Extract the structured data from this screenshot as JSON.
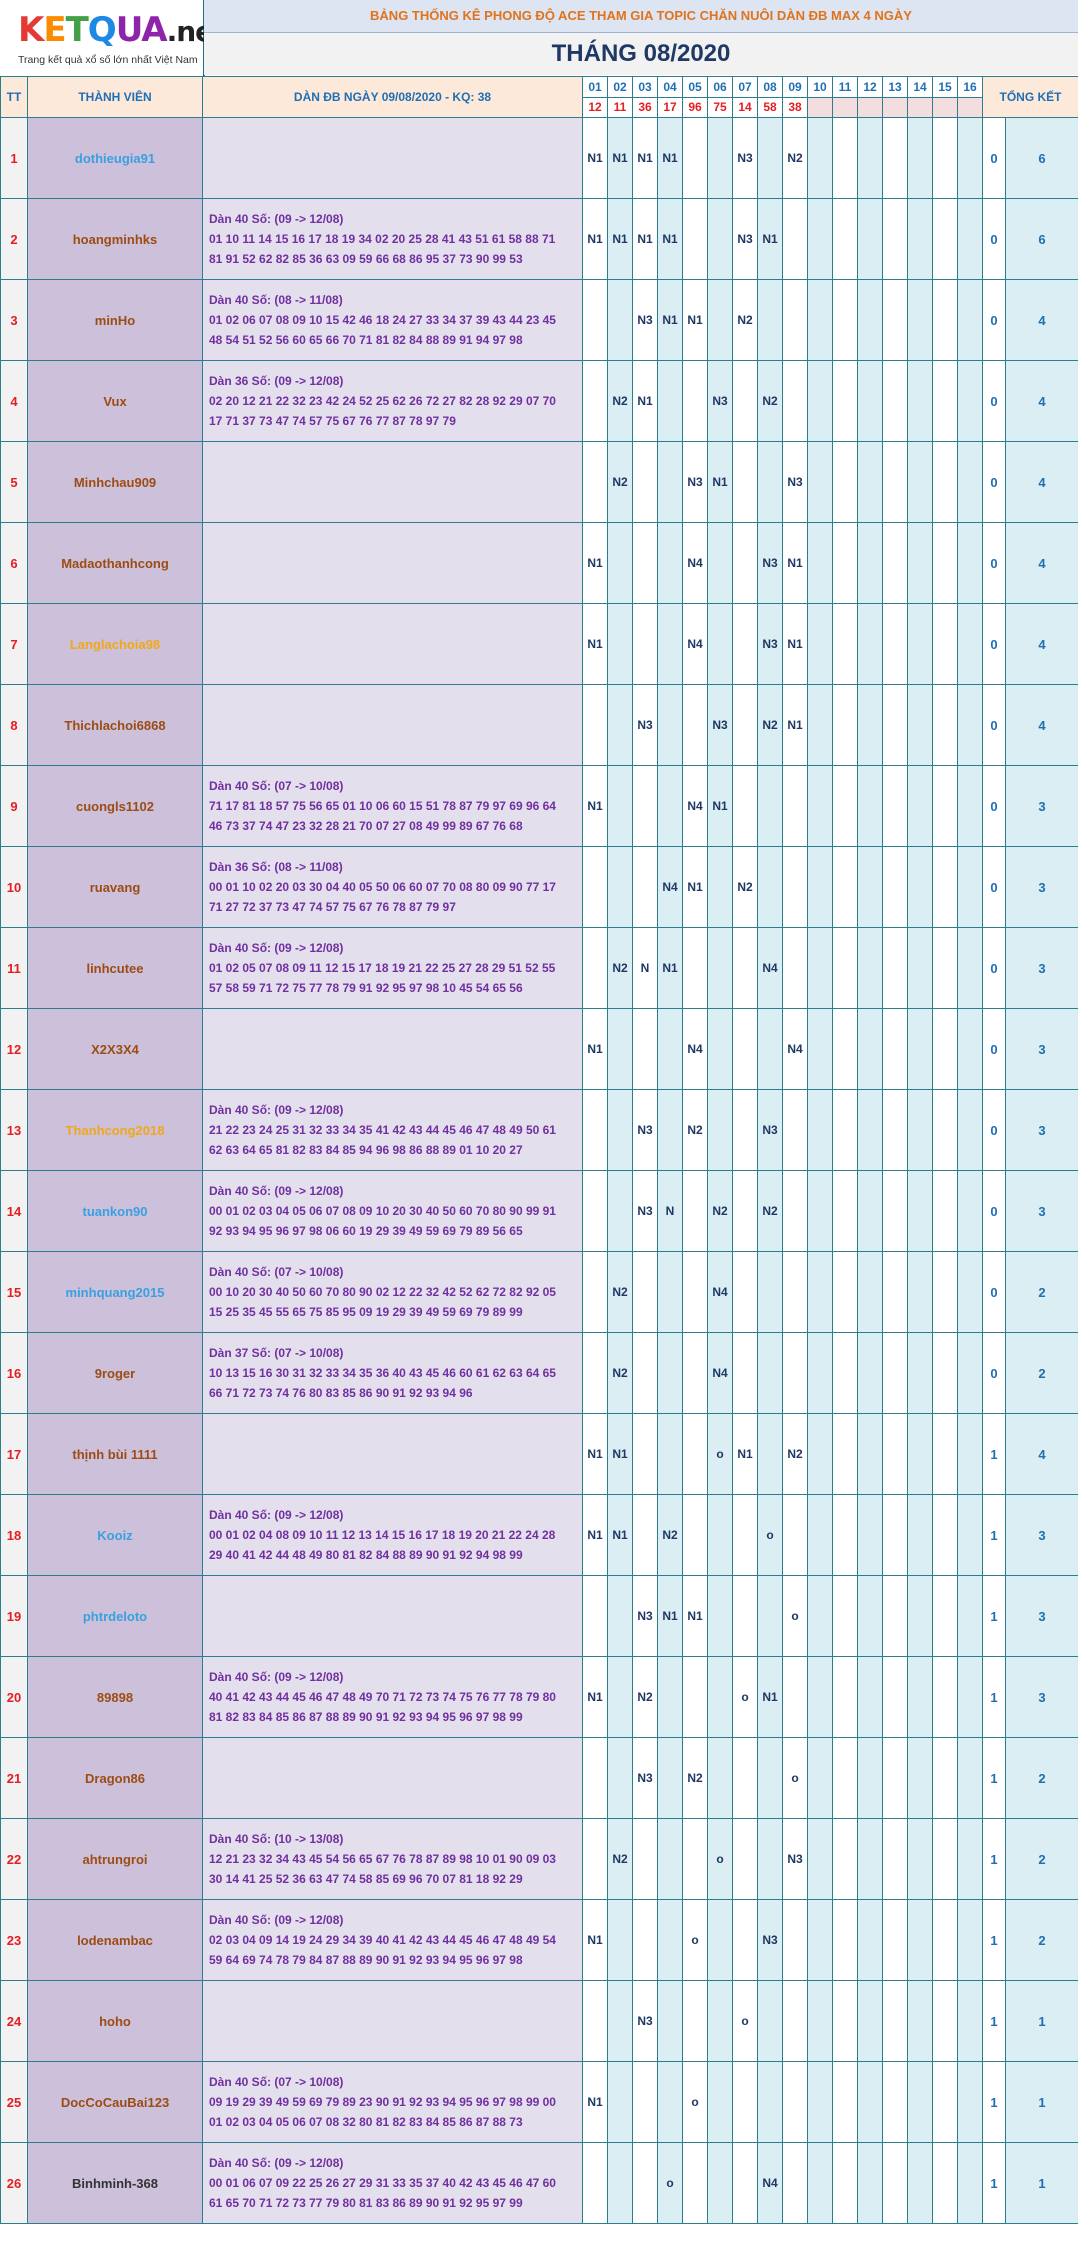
{
  "logo": {
    "c1": "K",
    "c2": "E",
    "c3": "T",
    "c4": "Q",
    "c5": "UA",
    "c6": ".net",
    "tagline": "Trang kết quả xổ số lớn nhất Việt Nam"
  },
  "banner": "BẢNG THỐNG KÊ PHONG ĐỘ ACE THAM GIA TOPIC CHĂN NUÔI DÀN ĐB MAX 4 NGÀY",
  "month_title": "THÁNG 08/2020",
  "headers": {
    "tt": "TT",
    "member": "THÀNH VIÊN",
    "dan": "DÀN ĐB NGÀY 09/08/2020 - KQ: 38",
    "summary": "TỔNG KẾT"
  },
  "days": [
    "01",
    "02",
    "03",
    "04",
    "05",
    "06",
    "07",
    "08",
    "09",
    "10",
    "11",
    "12",
    "13",
    "14",
    "15",
    "16"
  ],
  "results": [
    "12",
    "11",
    "36",
    "17",
    "96",
    "75",
    "14",
    "58",
    "38",
    "",
    "",
    "",
    "",
    "",
    "",
    ""
  ],
  "colors": {
    "blue_name": "#3aa0e0",
    "brown_name": "#9c4c14",
    "gold_name": "#f0a818",
    "index_red": "#e31e24",
    "dan_purple": "#7030a0",
    "header_bg": "#fde9d9",
    "member_bg": "#ccc0da",
    "dan_bg": "#e4dfec",
    "stripe": "#daeef3"
  },
  "rows": [
    {
      "tt": "1",
      "name": "dothieugia91",
      "color": "blue",
      "dan": [],
      "marks": [
        "N1",
        "N1",
        "N1",
        "N1",
        "",
        "",
        "N3",
        "",
        "N2",
        "",
        "",
        "",
        "",
        "",
        "",
        ""
      ],
      "wins": "0",
      "total": "6"
    },
    {
      "tt": "2",
      "name": "hoangminhks",
      "color": "brown",
      "dan": [
        "Dàn 40 Số: (09 -> 12/08)",
        "01 10 11 14 15 16 17 18 19 34 02 20 25 28 41 43 51 61 58 88 71",
        "81 91 52 62 82 85 36 63 09 59 66 68 86 95 37 73 90 99 53"
      ],
      "marks": [
        "N1",
        "N1",
        "N1",
        "N1",
        "",
        "",
        "N3",
        "N1",
        "",
        "",
        "",
        "",
        "",
        "",
        "",
        ""
      ],
      "wins": "0",
      "total": "6"
    },
    {
      "tt": "3",
      "name": "minHo",
      "color": "brown",
      "dan": [
        "Dàn 40 Số: (08 -> 11/08)",
        "01 02 06 07 08 09 10 15 42 46 18 24 27 33 34 37 39 43 44 23 45",
        "48 54 51 52 56 60 65 66 70 71 81 82 84 88 89 91 94 97 98"
      ],
      "marks": [
        "",
        "",
        "N3",
        "N1",
        "N1",
        "",
        "N2",
        "",
        "",
        "",
        "",
        "",
        "",
        "",
        "",
        ""
      ],
      "wins": "0",
      "total": "4"
    },
    {
      "tt": "4",
      "name": "Vux",
      "color": "brown",
      "dan": [
        "Dàn 36 Số: (09 -> 12/08)",
        "02 20 12 21 22 32 23 42 24 52 25 62 26 72 27 82 28 92 29 07 70",
        "17 71 37 73 47 74 57 75 67 76 77 87 78 97 79"
      ],
      "marks": [
        "",
        "N2",
        "N1",
        "",
        "",
        "N3",
        "",
        "N2",
        "",
        "",
        "",
        "",
        "",
        "",
        "",
        ""
      ],
      "wins": "0",
      "total": "4"
    },
    {
      "tt": "5",
      "name": "Minhchau909",
      "color": "brown",
      "dan": [],
      "marks": [
        "",
        "N2",
        "",
        "",
        "N3",
        "N1",
        "",
        "",
        "N3",
        "",
        "",
        "",
        "",
        "",
        "",
        ""
      ],
      "wins": "0",
      "total": "4"
    },
    {
      "tt": "6",
      "name": "Madaothanhcong",
      "color": "brown",
      "dan": [],
      "marks": [
        "N1",
        "",
        "",
        "",
        "N4",
        "",
        "",
        "N3",
        "N1",
        "",
        "",
        "",
        "",
        "",
        "",
        ""
      ],
      "wins": "0",
      "total": "4"
    },
    {
      "tt": "7",
      "name": "Langlachoia98",
      "color": "gold",
      "dan": [],
      "marks": [
        "N1",
        "",
        "",
        "",
        "N4",
        "",
        "",
        "N3",
        "N1",
        "",
        "",
        "",
        "",
        "",
        "",
        ""
      ],
      "wins": "0",
      "total": "4"
    },
    {
      "tt": "8",
      "name": "Thichlachoi6868",
      "color": "brown",
      "dan": [],
      "marks": [
        "",
        "",
        "N3",
        "",
        "",
        "N3",
        "",
        "N2",
        "N1",
        "",
        "",
        "",
        "",
        "",
        "",
        ""
      ],
      "wins": "0",
      "total": "4"
    },
    {
      "tt": "9",
      "name": "cuongls1102",
      "color": "brown",
      "dan": [
        "Dàn 40 Số: (07 -> 10/08)",
        "71 17 81 18 57 75 56 65 01 10 06 60 15 51 78 87 79 97 69 96 64",
        "46 73 37 74 47 23 32 28 21 70 07 27 08 49 99 89 67 76 68"
      ],
      "marks": [
        "N1",
        "",
        "",
        "",
        "N4",
        "N1",
        "",
        "",
        "",
        "",
        "",
        "",
        "",
        "",
        "",
        ""
      ],
      "wins": "0",
      "total": "3"
    },
    {
      "tt": "10",
      "name": "ruavang",
      "color": "brown",
      "dan": [
        "Dàn 36 Số: (08 -> 11/08)",
        "00 01 10 02 20 03 30 04 40 05 50 06 60 07 70 08 80 09 90 77 17",
        "71 27 72 37 73 47 74 57 75 67 76 78 87 79 97"
      ],
      "marks": [
        "",
        "",
        "",
        "N4",
        "N1",
        "",
        "N2",
        "",
        "",
        "",
        "",
        "",
        "",
        "",
        "",
        ""
      ],
      "wins": "0",
      "total": "3"
    },
    {
      "tt": "11",
      "name": "linhcutee",
      "color": "brown",
      "dan": [
        "Dàn 40 Số: (09 -> 12/08)",
        "01 02 05 07 08 09 11 12 15 17 18 19 21 22 25 27 28 29 51 52 55",
        "57 58 59 71 72 75 77 78 79 91 92 95 97 98 10 45 54 65 56"
      ],
      "marks": [
        "",
        "N2",
        "N",
        "N1",
        "",
        "",
        "",
        "N4",
        "",
        "",
        "",
        "",
        "",
        "",
        "",
        ""
      ],
      "wins": "0",
      "total": "3"
    },
    {
      "tt": "12",
      "name": "X2X3X4",
      "color": "brown",
      "dan": [],
      "marks": [
        "N1",
        "",
        "",
        "",
        "N4",
        "",
        "",
        "",
        "N4",
        "",
        "",
        "",
        "",
        "",
        "",
        ""
      ],
      "wins": "0",
      "total": "3"
    },
    {
      "tt": "13",
      "name": "Thanhcong2018",
      "color": "gold",
      "dan": [
        "Dàn 40 Số: (09 -> 12/08)",
        "21 22 23 24 25 31 32 33 34 35 41 42 43 44 45 46 47 48 49 50 61",
        "62 63 64 65 81 82 83 84 85 94 96 98 86 88 89 01 10 20 27"
      ],
      "marks": [
        "",
        "",
        "N3",
        "",
        "N2",
        "",
        "",
        "N3",
        "",
        "",
        "",
        "",
        "",
        "",
        "",
        ""
      ],
      "wins": "0",
      "total": "3"
    },
    {
      "tt": "14",
      "name": "tuankon90",
      "color": "blue",
      "dan": [
        "Dàn 40 Số: (09 -> 12/08)",
        "00 01 02 03 04 05 06 07 08 09 10 20 30 40 50 60 70 80 90 99 91",
        "92 93 94 95 96 97 98 06 60 19 29 39 49 59 69 79 89 56 65"
      ],
      "marks": [
        "",
        "",
        "N3",
        "N",
        "",
        "N2",
        "",
        "N2",
        "",
        "",
        "",
        "",
        "",
        "",
        "",
        ""
      ],
      "wins": "0",
      "total": "3"
    },
    {
      "tt": "15",
      "name": "minhquang2015",
      "color": "blue",
      "dan": [
        "Dàn 40 Số: (07 -> 10/08)",
        "00 10 20 30 40 50 60 70 80 90 02 12 22 32 42 52 62 72 82 92 05",
        "15 25 35 45 55 65 75 85 95 09 19 29 39 49 59 69 79 89 99"
      ],
      "marks": [
        "",
        "N2",
        "",
        "",
        "",
        "N4",
        "",
        "",
        "",
        "",
        "",
        "",
        "",
        "",
        "",
        ""
      ],
      "wins": "0",
      "total": "2"
    },
    {
      "tt": "16",
      "name": "9roger",
      "color": "brown",
      "dan": [
        "Dàn 37 Số: (07 -> 10/08)",
        "10 13 15 16 30 31 32 33 34 35 36 40 43 45 46 60 61 62 63 64 65",
        "66 71 72 73 74 76 80 83 85 86 90 91 92 93 94 96"
      ],
      "marks": [
        "",
        "N2",
        "",
        "",
        "",
        "N4",
        "",
        "",
        "",
        "",
        "",
        "",
        "",
        "",
        "",
        ""
      ],
      "wins": "0",
      "total": "2"
    },
    {
      "tt": "17",
      "name": "thịnh bùi 1111",
      "color": "brown",
      "dan": [],
      "marks": [
        "N1",
        "N1",
        "",
        "",
        "",
        "o",
        "N1",
        "",
        "N2",
        "",
        "",
        "",
        "",
        "",
        "",
        ""
      ],
      "wins": "1",
      "total": "4"
    },
    {
      "tt": "18",
      "name": "Kooiz",
      "color": "blue",
      "dan": [
        "Dàn 40 Số: (09 -> 12/08)",
        "00 01 02 04 08 09 10 11 12 13 14 15 16 17 18 19 20 21 22 24 28",
        "29 40 41 42 44 48 49 80 81 82 84 88 89 90 91 92 94 98 99"
      ],
      "marks": [
        "N1",
        "N1",
        "",
        "N2",
        "",
        "",
        "",
        "o",
        "",
        "",
        "",
        "",
        "",
        "",
        "",
        ""
      ],
      "wins": "1",
      "total": "3"
    },
    {
      "tt": "19",
      "name": "phtrdeloto",
      "color": "blue",
      "dan": [],
      "marks": [
        "",
        "",
        "N3",
        "N1",
        "N1",
        "",
        "",
        "",
        "o",
        "",
        "",
        "",
        "",
        "",
        "",
        ""
      ],
      "wins": "1",
      "total": "3"
    },
    {
      "tt": "20",
      "name": "89898",
      "color": "brown",
      "dan": [
        "Dàn 40 Số: (09 -> 12/08)",
        "40 41 42 43 44 45 46 47 48 49 70 71 72 73 74 75 76 77 78 79 80",
        "81 82 83 84 85 86 87 88 89 90 91 92 93 94 95 96 97 98 99"
      ],
      "marks": [
        "N1",
        "",
        "N2",
        "",
        "",
        "",
        "o",
        "N1",
        "",
        "",
        "",
        "",
        "",
        "",
        "",
        ""
      ],
      "wins": "1",
      "total": "3"
    },
    {
      "tt": "21",
      "name": "Dragon86",
      "color": "brown",
      "dan": [],
      "marks": [
        "",
        "",
        "N3",
        "",
        "N2",
        "",
        "",
        "",
        "o",
        "",
        "",
        "",
        "",
        "",
        "",
        ""
      ],
      "wins": "1",
      "total": "2"
    },
    {
      "tt": "22",
      "name": "ahtrungroi",
      "color": "brown",
      "dan": [
        "Dàn 40 Số: (10 -> 13/08)",
        "12 21 23 32 34 43 45 54 56 65 67 76 78 87 89 98 10 01 90 09 03",
        "30 14 41 25 52 36 63 47 74 58 85 69 96 70 07 81 18 92 29"
      ],
      "marks": [
        "",
        "N2",
        "",
        "",
        "",
        "o",
        "",
        "",
        "N3",
        "",
        "",
        "",
        "",
        "",
        "",
        ""
      ],
      "wins": "1",
      "total": "2"
    },
    {
      "tt": "23",
      "name": "lodenambac",
      "color": "brown",
      "dan": [
        "Dàn 40 Số: (09 -> 12/08)",
        "02 03 04 09 14 19 24 29 34 39 40 41 42 43 44 45 46 47 48 49 54",
        "59 64 69 74 78 79 84 87 88 89 90 91 92 93 94 95 96 97 98"
      ],
      "marks": [
        "N1",
        "",
        "",
        "",
        "o",
        "",
        "",
        "N3",
        "",
        "",
        "",
        "",
        "",
        "",
        "",
        ""
      ],
      "wins": "1",
      "total": "2"
    },
    {
      "tt": "24",
      "name": "hoho",
      "color": "brown",
      "dan": [],
      "marks": [
        "",
        "",
        "N3",
        "",
        "",
        "",
        "o",
        "",
        "",
        "",
        "",
        "",
        "",
        "",
        "",
        ""
      ],
      "wins": "1",
      "total": "1"
    },
    {
      "tt": "25",
      "name": "DocCoCauBai123",
      "color": "brown",
      "dan": [
        "Dàn 40 Số: (07 -> 10/08)",
        "09 19 29 39 49 59 69 79 89 23 90 91 92 93 94 95 96 97 98 99 00",
        "01 02 03 04 05 06 07 08 32 80 81 82 83 84 85 86 87 88 73"
      ],
      "marks": [
        "N1",
        "",
        "",
        "",
        "o",
        "",
        "",
        "",
        "",
        "",
        "",
        "",
        "",
        "",
        "",
        ""
      ],
      "wins": "1",
      "total": "1"
    },
    {
      "tt": "26",
      "name": "Binhminh-368",
      "color": "black",
      "dan": [
        "Dàn 40 Số: (09 -> 12/08)",
        "00 01 06 07 09 22 25 26 27 29 31 33 35 37 40 42 43 45 46 47 60",
        "61 65 70 71 72 73 77 79 80 81 83 86 89 90 91 92 95 97 99"
      ],
      "marks": [
        "",
        "",
        "",
        "o",
        "",
        "",
        "",
        "N4",
        "",
        "",
        "",
        "",
        "",
        "",
        "",
        ""
      ],
      "wins": "1",
      "total": "1"
    }
  ]
}
